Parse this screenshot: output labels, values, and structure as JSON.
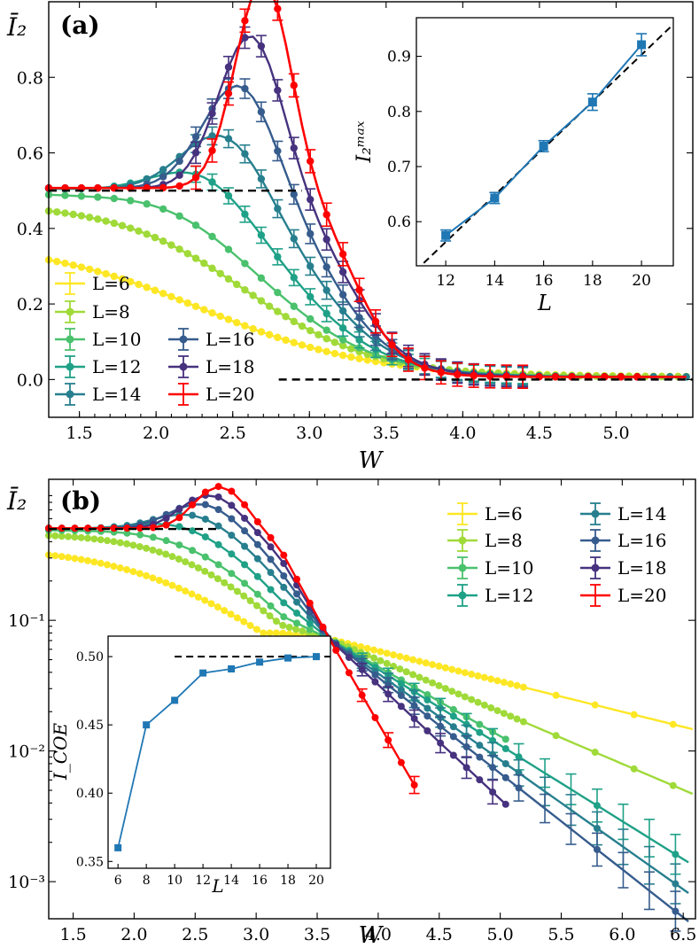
{
  "chart_data": [
    {
      "panel_label": "(a)",
      "type": "line",
      "yscale": "linear",
      "ylabel": "Ī₂",
      "xlabel": "W",
      "xlim": [
        1.3,
        5.5
      ],
      "ylim": [
        -0.1,
        1.0
      ],
      "xticks": [
        1.5,
        2.0,
        2.5,
        3.0,
        3.5,
        4.0,
        4.5,
        5.0
      ],
      "xtick_labels": [
        "1.5",
        "2.0",
        "2.5",
        "3.0",
        "3.5",
        "4.0",
        "4.5",
        "5.0"
      ],
      "yticks": [
        0.0,
        0.2,
        0.4,
        0.6,
        0.8
      ],
      "ytick_labels": [
        "0.0",
        "0.2",
        "0.4",
        "0.6",
        "0.8"
      ],
      "legend_position": "bottom-left",
      "reference_lines": [
        {
          "y": 0.5,
          "x_range": [
            1.3,
            2.95
          ],
          "style": "dashed"
        },
        {
          "y": 0.0,
          "x_range": [
            2.8,
            5.5
          ],
          "style": "dashed"
        }
      ],
      "series": [
        {
          "name": "L=6",
          "color": "#fde725",
          "params": {
            "start": 0.36,
            "w0": 2.3,
            "s": 0.55,
            "bump": 0,
            "wp": 0,
            "bw": 0.3
          }
        },
        {
          "name": "L=8",
          "color": "#a0da39",
          "params": {
            "start": 0.46,
            "w0": 2.58,
            "s": 0.42,
            "bump": 0,
            "wp": 0,
            "bw": 0.3
          }
        },
        {
          "name": "L=10",
          "color": "#4ac16d",
          "params": {
            "start": 0.49,
            "w0": 2.72,
            "s": 0.36,
            "bump": 0.02,
            "wp": 2.1,
            "bw": 0.35
          }
        },
        {
          "name": "L=12",
          "color": "#1fa187",
          "params": {
            "start": 0.5,
            "w0": 2.9,
            "s": 0.3,
            "bump": 0.09,
            "wp": 2.3,
            "bw": 0.3
          }
        },
        {
          "name": "L=14",
          "color": "#277f8e",
          "params": {
            "start": 0.5,
            "w0": 3.05,
            "s": 0.26,
            "bump": 0.18,
            "wp": 2.45,
            "bw": 0.27
          }
        },
        {
          "name": "L=16",
          "color": "#365c8d",
          "params": {
            "start": 0.5,
            "w0": 3.15,
            "s": 0.22,
            "bump": 0.3,
            "wp": 2.55,
            "bw": 0.24
          }
        },
        {
          "name": "L=18",
          "color": "#46327e",
          "params": {
            "start": 0.5,
            "w0": 3.25,
            "s": 0.19,
            "bump": 0.42,
            "wp": 2.62,
            "bw": 0.21
          }
        },
        {
          "name": "L=20",
          "color": "#ff0000",
          "params": {
            "start": 0.5,
            "w0": 3.3,
            "s": 0.15,
            "bump": 0.56,
            "wp": 2.7,
            "bw": 0.18
          }
        }
      ],
      "inset": {
        "xlabel": "L",
        "ylabel": "I₂ᵐᵃˣ",
        "xlim": [
          10.8,
          21.3
        ],
        "ylim": [
          0.52,
          0.97
        ],
        "xticks": [
          12,
          14,
          16,
          18,
          20
        ],
        "xtick_labels": [
          "12",
          "14",
          "16",
          "18",
          "20"
        ],
        "yticks": [
          0.6,
          0.7,
          0.8,
          0.9
        ],
        "ytick_labels": [
          "0.6",
          "0.7",
          "0.8",
          "0.9"
        ],
        "x": [
          12,
          14,
          16,
          18,
          20
        ],
        "y": [
          0.575,
          0.643,
          0.737,
          0.817,
          0.921
        ],
        "yerr": [
          0.01,
          0.01,
          0.01,
          0.015,
          0.02
        ],
        "fit_line": {
          "x": [
            11.1,
            21.3
          ],
          "y": [
            0.525,
            0.958
          ],
          "style": "dashed"
        },
        "color": "#1f77b4"
      }
    },
    {
      "panel_label": "(b)",
      "type": "line",
      "yscale": "log",
      "ylabel": "Ī₂",
      "xlabel": "W",
      "xlim": [
        1.3,
        6.6
      ],
      "ylim": [
        0.00052,
        1.2
      ],
      "xticks": [
        1.5,
        2.0,
        2.5,
        3.0,
        3.5,
        4.0,
        4.5,
        5.0,
        5.5,
        6.0,
        6.5
      ],
      "xtick_labels": [
        "1.5",
        "2.0",
        "2.5",
        "3.0",
        "3.5",
        "4.0",
        "4.5",
        "5.0",
        "5.5",
        "6.0",
        "6.5"
      ],
      "yticks": [
        0.1,
        0.01,
        0.001
      ],
      "ytick_labels": [
        "10⁻¹",
        "10⁻²",
        "10⁻³"
      ],
      "legend_position": "top-right",
      "reference_lines": [
        {
          "y": 0.5,
          "x_range": [
            1.3,
            2.7
          ],
          "style": "dashed"
        }
      ],
      "series": [
        {
          "name": "L=6",
          "color": "#fde725",
          "wmax": 6.6,
          "tail": [
            [
              3.6,
              0.072
            ],
            [
              6.6,
              0.0145
            ]
          ]
        },
        {
          "name": "L=8",
          "color": "#a0da39",
          "wmax": 6.6,
          "tail": [
            [
              3.6,
              0.072
            ],
            [
              6.6,
              0.0046
            ]
          ]
        },
        {
          "name": "L=10",
          "color": "#4ac16d",
          "wmax": 5.1,
          "tail": [
            [
              3.6,
              0.072
            ],
            [
              5.1,
              0.0115
            ]
          ]
        },
        {
          "name": "L=12",
          "color": "#1fa187",
          "wmax": 6.6,
          "tail": [
            [
              3.6,
              0.072
            ],
            [
              6.6,
              0.0013
            ]
          ]
        },
        {
          "name": "L=14",
          "color": "#277f8e",
          "wmax": 6.6,
          "tail": [
            [
              3.6,
              0.072
            ],
            [
              6.6,
              0.00075
            ]
          ]
        },
        {
          "name": "L=16",
          "color": "#365c8d",
          "wmax": 6.6,
          "tail": [
            [
              3.6,
              0.072
            ],
            [
              6.6,
              0.00045
            ]
          ]
        },
        {
          "name": "L=18",
          "color": "#46327e",
          "wmax": 5.1,
          "tail": [
            [
              3.6,
              0.072
            ],
            [
              5.1,
              0.0035
            ]
          ]
        },
        {
          "name": "L=20",
          "color": "#ff0000",
          "wmax": 4.35,
          "tail": [
            [
              3.6,
              0.072
            ],
            [
              4.35,
              0.0045
            ]
          ]
        }
      ],
      "inset": {
        "xlabel": "L",
        "ylabel": "I_COE",
        "xlim": [
          5.3,
          21.0
        ],
        "ylim": [
          0.345,
          0.515
        ],
        "xticks": [
          6,
          8,
          10,
          12,
          14,
          16,
          18,
          20
        ],
        "xtick_labels": [
          "6",
          "8",
          "10",
          "12",
          "14",
          "16",
          "18",
          "20"
        ],
        "yticks": [
          0.35,
          0.4,
          0.45,
          0.5
        ],
        "ytick_labels": [
          "0.35",
          "0.40",
          "0.45",
          "0.50"
        ],
        "x": [
          6,
          8,
          10,
          12,
          14,
          16,
          18,
          20
        ],
        "y": [
          0.36,
          0.45,
          0.468,
          0.488,
          0.491,
          0.496,
          0.499,
          0.5
        ],
        "reference_line": {
          "y": 0.5,
          "x_range": [
            10,
            21
          ],
          "style": "dashed"
        },
        "color": "#1f77b4"
      }
    }
  ]
}
